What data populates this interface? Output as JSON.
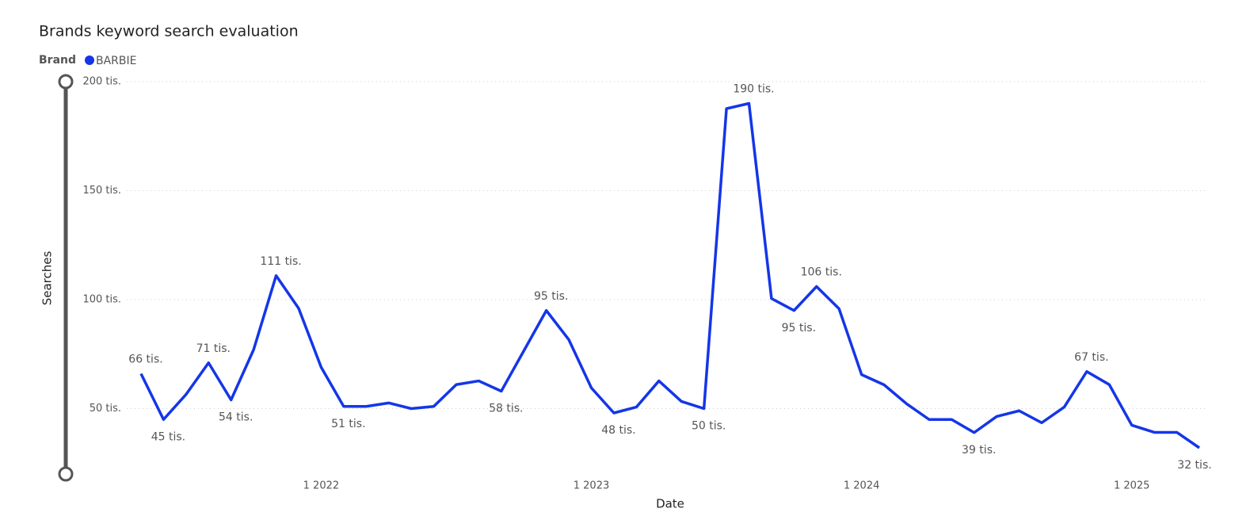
{
  "chart_data": {
    "type": "line",
    "title": "Brands keyword search evaluation",
    "legend_title": "Brand",
    "x_label": "Date",
    "y_label": "Searches",
    "x": [
      "2021-05",
      "2021-06",
      "2021-07",
      "2021-08",
      "2021-09",
      "2021-10",
      "2021-11",
      "2021-12",
      "2022-01",
      "2022-02",
      "2022-03",
      "2022-04",
      "2022-05",
      "2022-06",
      "2022-07",
      "2022-08",
      "2022-09",
      "2022-10",
      "2022-11",
      "2022-12",
      "2023-01",
      "2023-02",
      "2023-03",
      "2023-04",
      "2023-05",
      "2023-06",
      "2023-07",
      "2023-08",
      "2023-09",
      "2023-10",
      "2023-11",
      "2023-12",
      "2024-01",
      "2024-02",
      "2024-03",
      "2024-04",
      "2024-05",
      "2024-06",
      "2024-07",
      "2024-08",
      "2024-09",
      "2024-10",
      "2024-11",
      "2024-12",
      "2025-01",
      "2025-02",
      "2025-03",
      "2025-04"
    ],
    "xticks": [
      {
        "value": "2022-01",
        "label": "1 2022"
      },
      {
        "value": "2023-01",
        "label": "1 2023"
      },
      {
        "value": "2024-01",
        "label": "1 2024"
      },
      {
        "value": "2025-01",
        "label": "1 2025"
      }
    ],
    "ylim": [
      20000,
      200000
    ],
    "yticks": [
      {
        "value": 50000,
        "label": "50 tis."
      },
      {
        "value": 100000,
        "label": "100 tis."
      },
      {
        "value": 150000,
        "label": "150 tis."
      },
      {
        "value": 200000,
        "label": "200 tis."
      }
    ],
    "grid": true,
    "series": [
      {
        "name": "BARBIE",
        "color": "#1436e8",
        "values": [
          66000,
          45000,
          56500,
          71000,
          54000,
          77000,
          111000,
          96000,
          69000,
          51000,
          51000,
          52600,
          50000,
          51000,
          61000,
          62700,
          58000,
          76500,
          95000,
          81600,
          59500,
          48000,
          50700,
          62700,
          53300,
          50000,
          187600,
          190000,
          100500,
          95000,
          106000,
          95800,
          65600,
          60900,
          52200,
          45000,
          45000,
          39000,
          46400,
          49000,
          43500,
          50700,
          67000,
          61000,
          42400,
          39100,
          39100,
          32000
        ],
        "value_labels": [
          "66 tis.",
          "45 tis.",
          null,
          "71 tis.",
          "54 tis.",
          null,
          "111 tis.",
          null,
          null,
          "51 tis.",
          null,
          null,
          null,
          null,
          null,
          null,
          "58 tis.",
          null,
          "95 tis.",
          null,
          null,
          "48 tis.",
          null,
          null,
          null,
          "50 tis.",
          null,
          "190 tis.",
          null,
          "95 tis.",
          "106 tis.",
          null,
          null,
          null,
          null,
          null,
          null,
          "39 tis.",
          null,
          null,
          null,
          null,
          "67 tis.",
          null,
          null,
          null,
          null,
          "32 tis."
        ]
      }
    ]
  }
}
